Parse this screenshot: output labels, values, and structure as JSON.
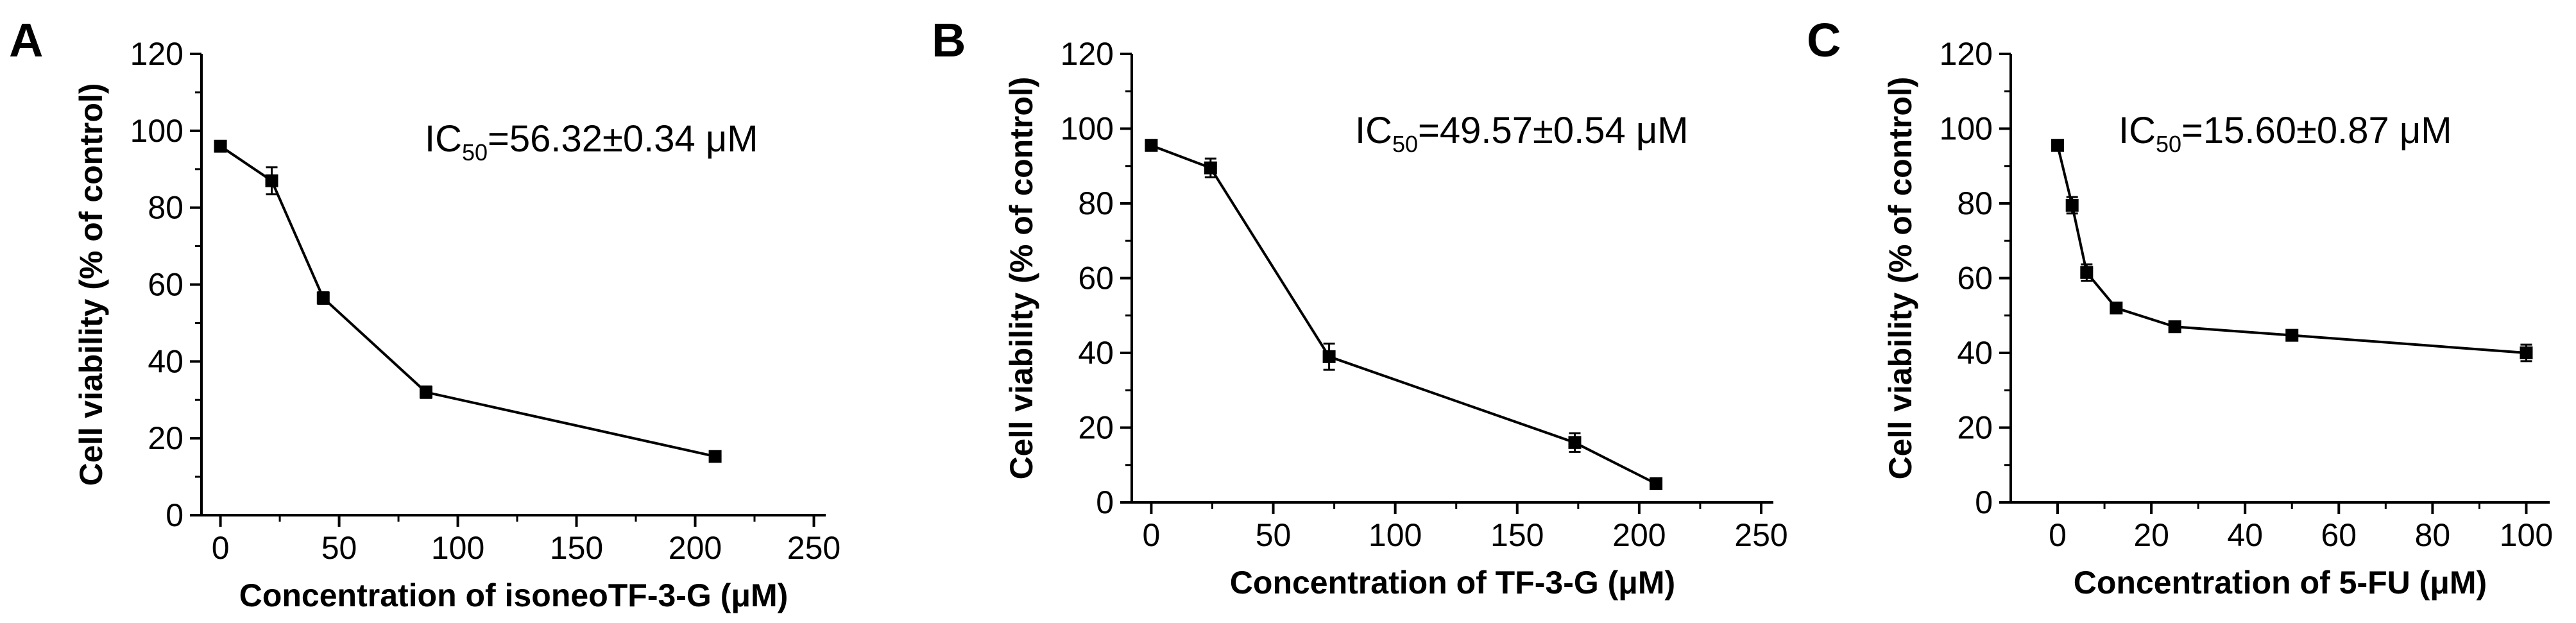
{
  "chart_data": [
    {
      "type": "line",
      "panel_label": "A",
      "title": "",
      "xlabel": "Concentration of isoneoTF-3-G (μM)",
      "ylabel": "Cell viability (% of control)",
      "xlim": [
        -8,
        255
      ],
      "ylim": [
        0,
        120
      ],
      "xticks": [
        0,
        50,
        100,
        150,
        200,
        250
      ],
      "yticks": [
        0,
        20,
        40,
        60,
        80,
        100,
        120
      ],
      "grid": false,
      "annotation": {
        "prefix": "IC",
        "subscript": "50",
        "suffix": "=56.32±0.34 μM"
      },
      "series": [
        {
          "x": [
            0,
            21.6,
            43.3,
            86.6,
            208.4
          ],
          "y": [
            96,
            87,
            56.5,
            32,
            15.3
          ],
          "error": [
            0.8,
            3.5,
            1.5,
            1.5,
            1.2
          ]
        }
      ]
    },
    {
      "type": "line",
      "panel_label": "B",
      "title": "",
      "xlabel": "Concentration of TF-3-G (μM)",
      "ylabel": "Cell viability (% of control)",
      "xlim": [
        -8,
        255
      ],
      "ylim": [
        0,
        120
      ],
      "xticks": [
        0,
        50,
        100,
        150,
        200,
        250
      ],
      "yticks": [
        0,
        20,
        40,
        60,
        80,
        100,
        120
      ],
      "grid": false,
      "annotation": {
        "prefix": "IC",
        "subscript": "50",
        "suffix": "=49.57±0.54 μM"
      },
      "series": [
        {
          "x": [
            0,
            24.3,
            72.9,
            173.6,
            206.9
          ],
          "y": [
            95.5,
            89.5,
            39,
            16,
            5
          ],
          "error": [
            0.8,
            2.5,
            3.5,
            2.5,
            0.8
          ]
        }
      ]
    },
    {
      "type": "line",
      "panel_label": "C",
      "title": "",
      "xlabel": "Concentration of 5-FU (μM)",
      "ylabel": "Cell viability (% of control)",
      "xlim": [
        -10,
        105
      ],
      "ylim": [
        0,
        120
      ],
      "xticks": [
        0,
        20,
        40,
        60,
        80,
        100
      ],
      "yticks": [
        0,
        20,
        40,
        60,
        80,
        100,
        120
      ],
      "grid": false,
      "annotation": {
        "prefix": "IC",
        "subscript": "50",
        "suffix": "=15.60±0.87 μM"
      },
      "series": [
        {
          "x": [
            0,
            3.1,
            6.2,
            12.5,
            25,
            50,
            100
          ],
          "y": [
            95.5,
            79.5,
            61.5,
            52,
            47,
            44.7,
            40
          ],
          "error": [
            0.8,
            2.2,
            2.2,
            1.0,
            1.0,
            1.0,
            2.2
          ]
        }
      ]
    }
  ]
}
